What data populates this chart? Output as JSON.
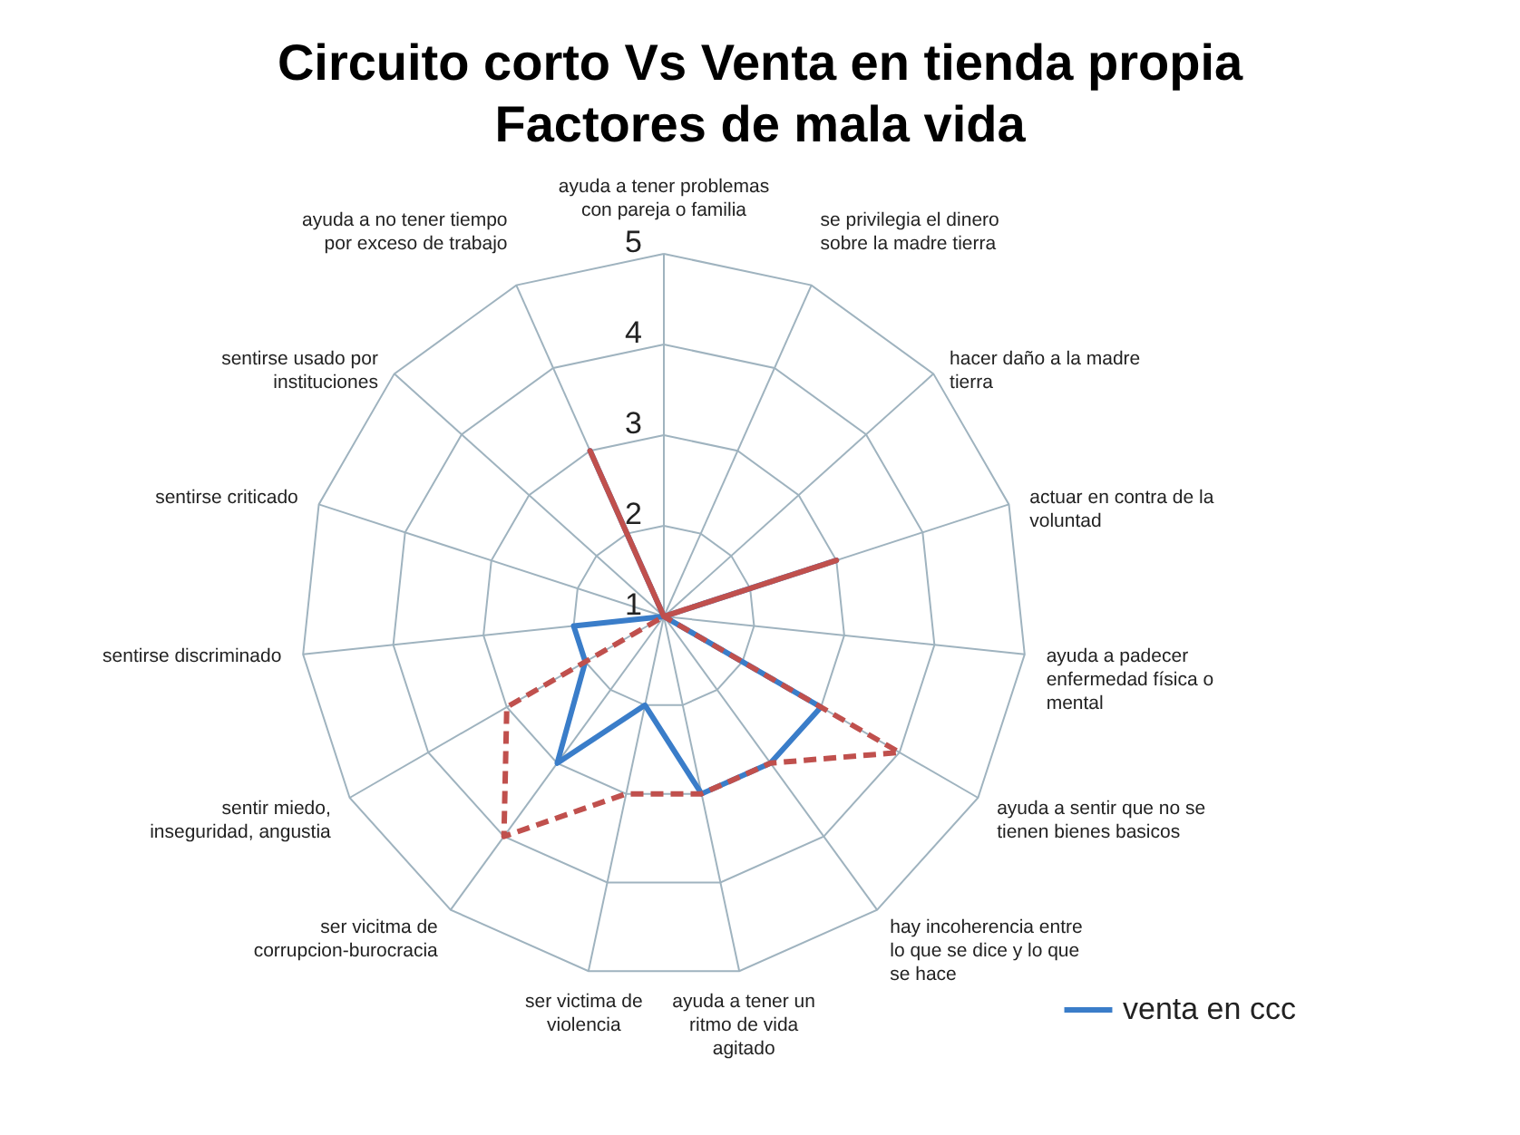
{
  "chart_data": {
    "type": "radar",
    "title": "Circuito corto Vs Venta en tienda propia\nFactores de mala vida",
    "categories": [
      "ayuda a tener problemas con pareja o familia",
      "se privilegia el dinero sobre la madre tierra",
      "hacer daño a la madre tierra",
      "actuar en contra de la voluntad",
      "ayuda a padecer enfermedad física o mental",
      "ayuda a sentir que no se tienen bienes basicos",
      "hay incoherencia entre lo que se dice y lo que se hace",
      "ayuda a tener un ritmo de vida agitado",
      "ser victima de violencia",
      "ser vicitma de corrupcion-burocracia",
      "sentir miedo, inseguridad, angustia",
      "sentirse discriminado",
      "sentirse criticado",
      "sentirse usado por instituciones",
      "ayuda a no tener tiempo por exceso de trabajo"
    ],
    "series": [
      {
        "name": "venta en ccc",
        "color": "#3a7dc9",
        "line_style": "solid",
        "values": [
          1,
          1,
          1,
          3,
          1,
          3,
          3,
          3,
          2,
          3,
          2,
          2,
          1,
          1,
          3
        ]
      },
      {
        "color": "#c0504d",
        "line_style": "dashed",
        "values": [
          1,
          1,
          1,
          3,
          1,
          4,
          3,
          3,
          3,
          4,
          3,
          1,
          1,
          1,
          3
        ]
      }
    ],
    "ylim": [
      1,
      5
    ],
    "yticks": [
      1,
      2,
      3,
      4,
      5
    ],
    "grid": true,
    "legend": "bottom right",
    "marker": "none"
  }
}
